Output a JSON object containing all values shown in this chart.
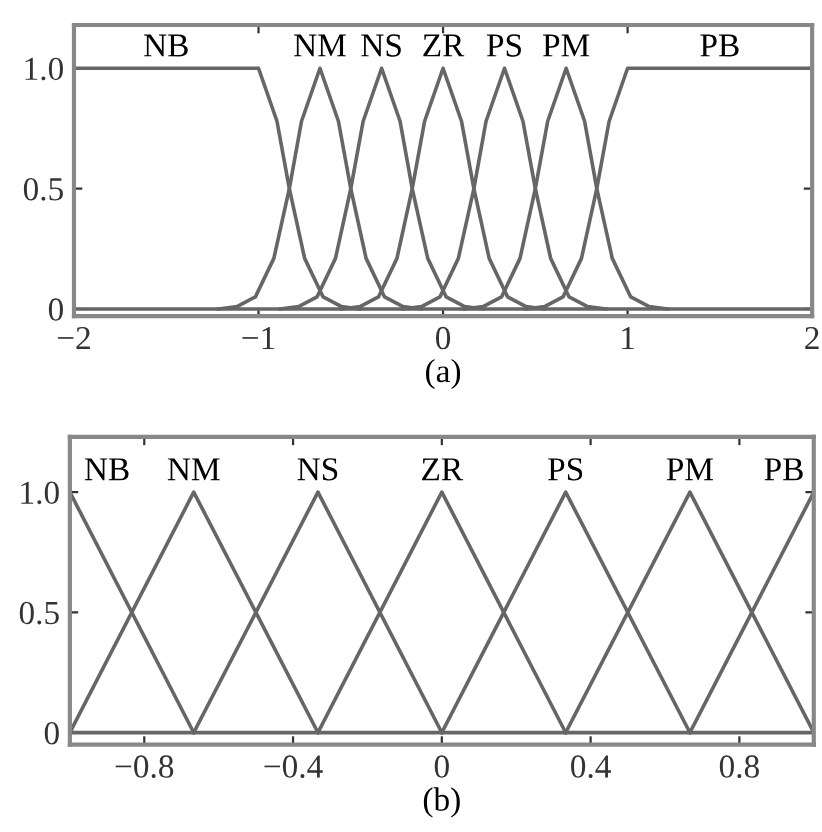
{
  "chart_data": [
    {
      "type": "line",
      "xlabel": "(a)",
      "xlim": [
        -2,
        2
      ],
      "ylim": [
        -0.03,
        1.18
      ],
      "xticks": [
        {
          "value": -2,
          "label": "−2"
        },
        {
          "value": -1,
          "label": "−1"
        },
        0,
        1,
        2
      ],
      "yticks": [
        0,
        0.5,
        {
          "value": 1,
          "label": "1.0"
        }
      ],
      "grid": false,
      "legend": false,
      "marker": "none",
      "line_style": "solid",
      "ref_lines": [
        {
          "axis": "y",
          "value": 0,
          "color": "#666666"
        }
      ],
      "series": [
        {
          "name": "NB",
          "color": "#666666",
          "x": [
            -2,
            -1,
            -0.9,
            -0.833,
            -0.75,
            -0.65,
            -0.55,
            -0.45
          ],
          "values": [
            1,
            1,
            0.78,
            0.5,
            0.21,
            0.05,
            0.01,
            0
          ]
        },
        {
          "name": "NM",
          "color": "#666666",
          "x": [
            -1.217,
            -1.117,
            -1.017,
            -0.917,
            -0.833,
            -0.767,
            -0.667,
            -0.567,
            -0.5,
            -0.417,
            -0.317,
            -0.217,
            -0.117
          ],
          "values": [
            0,
            0.01,
            0.05,
            0.21,
            0.5,
            0.78,
            1,
            0.78,
            0.5,
            0.21,
            0.05,
            0.01,
            0
          ]
        },
        {
          "name": "NS",
          "color": "#666666",
          "x": [
            -0.883,
            -0.783,
            -0.683,
            -0.583,
            -0.5,
            -0.433,
            -0.333,
            -0.233,
            -0.167,
            -0.083,
            0.017,
            0.117,
            0.217
          ],
          "values": [
            0,
            0.01,
            0.05,
            0.21,
            0.5,
            0.78,
            1,
            0.78,
            0.5,
            0.21,
            0.05,
            0.01,
            0
          ]
        },
        {
          "name": "ZR",
          "color": "#666666",
          "x": [
            -0.55,
            -0.45,
            -0.35,
            -0.25,
            -0.167,
            -0.1,
            0,
            0.1,
            0.167,
            0.25,
            0.35,
            0.45,
            0.55
          ],
          "values": [
            0,
            0.01,
            0.05,
            0.21,
            0.5,
            0.78,
            1,
            0.78,
            0.5,
            0.21,
            0.05,
            0.01,
            0
          ]
        },
        {
          "name": "PS",
          "color": "#666666",
          "x": [
            -0.217,
            -0.117,
            -0.017,
            0.083,
            0.167,
            0.233,
            0.333,
            0.433,
            0.5,
            0.583,
            0.683,
            0.783,
            0.883
          ],
          "values": [
            0,
            0.01,
            0.05,
            0.21,
            0.5,
            0.78,
            1,
            0.78,
            0.5,
            0.21,
            0.05,
            0.01,
            0
          ]
        },
        {
          "name": "PM",
          "color": "#666666",
          "x": [
            0.117,
            0.217,
            0.317,
            0.417,
            0.5,
            0.567,
            0.667,
            0.767,
            0.833,
            0.917,
            1.017,
            1.117,
            1.217
          ],
          "values": [
            0,
            0.01,
            0.05,
            0.21,
            0.5,
            0.78,
            1,
            0.78,
            0.5,
            0.21,
            0.05,
            0.01,
            0
          ]
        },
        {
          "name": "PB",
          "color": "#666666",
          "x": [
            0.45,
            0.55,
            0.65,
            0.75,
            0.833,
            0.9,
            1,
            2
          ],
          "values": [
            0,
            0.01,
            0.05,
            0.21,
            0.5,
            0.78,
            1,
            1
          ]
        }
      ]
    },
    {
      "type": "line",
      "xlabel": "(b)",
      "xlim": [
        -1,
        1
      ],
      "ylim": [
        -0.05,
        1.23
      ],
      "xticks": [
        {
          "value": -0.8,
          "label": "−0.8"
        },
        {
          "value": -0.4,
          "label": "−0.4"
        },
        0,
        0.4,
        0.8
      ],
      "yticks": [
        0,
        0.5,
        {
          "value": 1,
          "label": "1.0"
        }
      ],
      "grid": false,
      "legend": false,
      "marker": "none",
      "line_style": "solid",
      "ref_lines": [
        {
          "axis": "y",
          "value": 0,
          "color": "#666666"
        }
      ],
      "series": [
        {
          "name": "NB",
          "color": "#666666",
          "x": [
            -1,
            -0.667
          ],
          "values": [
            1,
            0
          ]
        },
        {
          "name": "NM",
          "color": "#666666",
          "x": [
            -1,
            -0.667,
            -0.333
          ],
          "values": [
            0,
            1,
            0
          ]
        },
        {
          "name": "NS",
          "color": "#666666",
          "x": [
            -0.667,
            -0.333,
            0
          ],
          "values": [
            0,
            1,
            0
          ]
        },
        {
          "name": "ZR",
          "color": "#666666",
          "x": [
            -0.333,
            0,
            0.333
          ],
          "values": [
            0,
            1,
            0
          ]
        },
        {
          "name": "PS",
          "color": "#666666",
          "x": [
            0,
            0.333,
            0.667
          ],
          "values": [
            0,
            1,
            0
          ]
        },
        {
          "name": "PM",
          "color": "#666666",
          "x": [
            0.333,
            0.667,
            1
          ],
          "values": [
            0,
            1,
            0
          ]
        },
        {
          "name": "PB",
          "color": "#666666",
          "x": [
            0.667,
            1
          ],
          "values": [
            0,
            1
          ]
        }
      ]
    }
  ]
}
